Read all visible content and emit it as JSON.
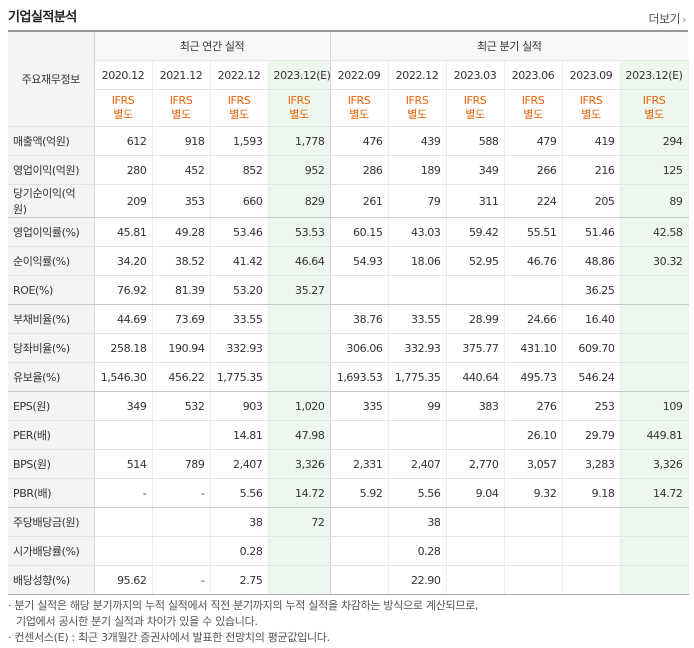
{
  "header": {
    "title": "기업실적분석",
    "more_label": "더보기"
  },
  "table": {
    "row_label_header": "주요재무정보",
    "group_annual": "최근 연간 실적",
    "group_quarter": "최근 분기 실적",
    "periods": [
      "2020.12",
      "2021.12",
      "2022.12",
      "2023.12(E)",
      "2022.09",
      "2022.12",
      "2023.03",
      "2023.06",
      "2023.09",
      "2023.12(E)"
    ],
    "accounting": "IFRS",
    "accounting_sub": "별도",
    "rows": [
      {
        "label": "매출액(억원)",
        "values": [
          "612",
          "918",
          "1,593",
          "1,778",
          "476",
          "439",
          "588",
          "479",
          "419",
          "294"
        ]
      },
      {
        "label": "영업이익(억원)",
        "values": [
          "280",
          "452",
          "852",
          "952",
          "286",
          "189",
          "349",
          "266",
          "216",
          "125"
        ]
      },
      {
        "label": "당기순이익(억원)",
        "values": [
          "209",
          "353",
          "660",
          "829",
          "261",
          "79",
          "311",
          "224",
          "205",
          "89"
        ]
      },
      {
        "label": "영업이익률(%)",
        "values": [
          "45.81",
          "49.28",
          "53.46",
          "53.53",
          "60.15",
          "43.03",
          "59.42",
          "55.51",
          "51.46",
          "42.58"
        ]
      },
      {
        "label": "순이익률(%)",
        "values": [
          "34.20",
          "38.52",
          "41.42",
          "46.64",
          "54.93",
          "18.06",
          "52.95",
          "46.76",
          "48.86",
          "30.32"
        ]
      },
      {
        "label": "ROE(%)",
        "values": [
          "76.92",
          "81.39",
          "53.20",
          "35.27",
          "",
          "",
          "",
          "",
          "36.25",
          ""
        ]
      },
      {
        "label": "부채비율(%)",
        "values": [
          "44.69",
          "73.69",
          "33.55",
          "",
          "38.76",
          "33.55",
          "28.99",
          "24.66",
          "16.40",
          ""
        ]
      },
      {
        "label": "당좌비율(%)",
        "values": [
          "258.18",
          "190.94",
          "332.93",
          "",
          "306.06",
          "332.93",
          "375.77",
          "431.10",
          "609.70",
          ""
        ]
      },
      {
        "label": "유보율(%)",
        "values": [
          "1,546.30",
          "456.22",
          "1,775.35",
          "",
          "1,693.53",
          "1,775.35",
          "440.64",
          "495.73",
          "546.24",
          ""
        ]
      },
      {
        "label": "EPS(원)",
        "values": [
          "349",
          "532",
          "903",
          "1,020",
          "335",
          "99",
          "383",
          "276",
          "253",
          "109"
        ]
      },
      {
        "label": "PER(배)",
        "values": [
          "",
          "",
          "14.81",
          "47.98",
          "",
          "",
          "",
          "26.10",
          "29.79",
          "449.81"
        ]
      },
      {
        "label": "BPS(원)",
        "values": [
          "514",
          "789",
          "2,407",
          "3,326",
          "2,331",
          "2,407",
          "2,770",
          "3,057",
          "3,283",
          "3,326"
        ]
      },
      {
        "label": "PBR(배)",
        "values": [
          "-",
          "-",
          "5.56",
          "14.72",
          "5.92",
          "5.56",
          "9.04",
          "9.32",
          "9.18",
          "14.72"
        ]
      },
      {
        "label": "주당배당금(원)",
        "values": [
          "",
          "",
          "38",
          "72",
          "",
          "38",
          "",
          "",
          "",
          ""
        ]
      },
      {
        "label": "시가배당률(%)",
        "values": [
          "",
          "",
          "0.28",
          "",
          "",
          "0.28",
          "",
          "",
          "",
          ""
        ]
      },
      {
        "label": "배당성향(%)",
        "values": [
          "95.62",
          "-",
          "2.75",
          "",
          "",
          "22.90",
          "",
          "",
          "",
          ""
        ]
      }
    ]
  },
  "notes": {
    "line1": "· 분기 실적은 해당 분기까지의 누적 실적에서 직전 분기까지의 누적 실적을 차감하는 방식으로 계산되므로,",
    "line2": "  기업에서 공시한 분기 실적과 차이가 있을 수 있습니다.",
    "line3": "· 컨센서스(E) : 최근 3개월간 증권사에서 발표한 전망치의 평균값입니다."
  }
}
